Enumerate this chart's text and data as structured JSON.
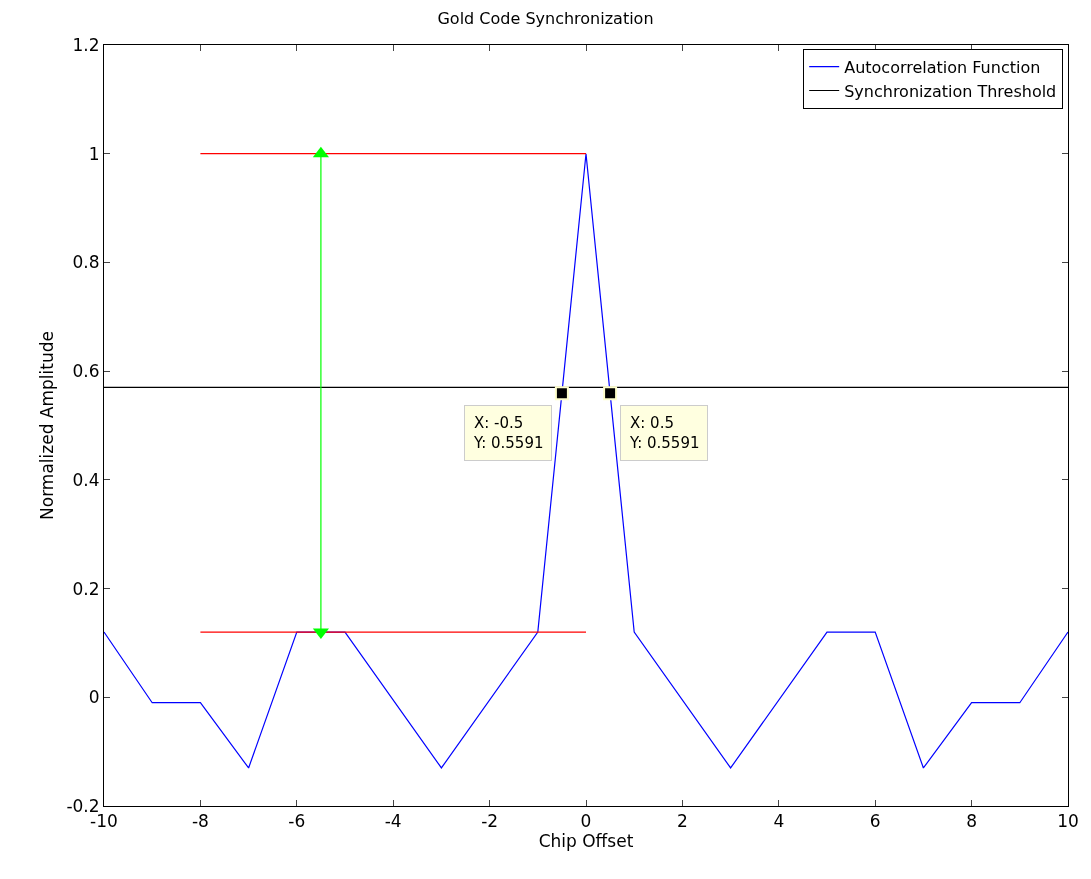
{
  "chart_data": {
    "type": "line",
    "title": "Gold Code Synchronization",
    "xlabel": "Chip Offset",
    "ylabel": "Normalized Amplitude",
    "xlim": [
      -10,
      10
    ],
    "ylim": [
      -0.2,
      1.2
    ],
    "xticks": [
      -10,
      -8,
      -6,
      -4,
      -2,
      0,
      2,
      4,
      6,
      8,
      10
    ],
    "yticks": [
      -0.2,
      0,
      0.2,
      0.4,
      0.6,
      0.8,
      1,
      1.2
    ],
    "legend": "top right",
    "series": [
      {
        "name": "Autocorrelation Function",
        "color": "#0000ff",
        "x": [
          -10,
          -9,
          -8,
          -7,
          -6,
          -5,
          -3,
          -1,
          -0.5,
          0,
          0.5,
          1,
          3,
          5,
          6,
          7,
          8,
          9,
          10
        ],
        "values": [
          0.12,
          -0.01,
          -0.01,
          -0.13,
          0.12,
          0.12,
          -0.13,
          0.12,
          0.5591,
          1,
          0.5591,
          0.12,
          -0.13,
          0.12,
          0.12,
          -0.13,
          -0.01,
          -0.01,
          0.12
        ]
      },
      {
        "name": "Synchronization Threshold",
        "color": "#000000",
        "x": [
          -10,
          10
        ],
        "values": [
          0.57,
          0.57
        ]
      },
      {
        "color": "#ff0000",
        "x": [
          -8,
          0
        ],
        "values": [
          1,
          1
        ]
      },
      {
        "color": "#ff0000",
        "x": [
          -8,
          0
        ],
        "values": [
          0.12,
          0.12
        ]
      },
      {
        "color": "#00ff00",
        "x": [
          -5.5,
          -5.5
        ],
        "values": [
          0.12,
          1
        ],
        "marker": "triangle"
      },
      {
        "type": "scatter",
        "color": "#000000",
        "marker": "square",
        "x": [
          -0.5,
          0.5
        ],
        "values": [
          0.5591,
          0.5591
        ]
      }
    ],
    "annotations": [
      {
        "text": "X: -0.5\nY: 0.5591",
        "x": -0.5,
        "y": 0.5591
      },
      {
        "text": "X: 0.5\nY: 0.5591",
        "x": 0.5,
        "y": 0.5591
      }
    ]
  }
}
